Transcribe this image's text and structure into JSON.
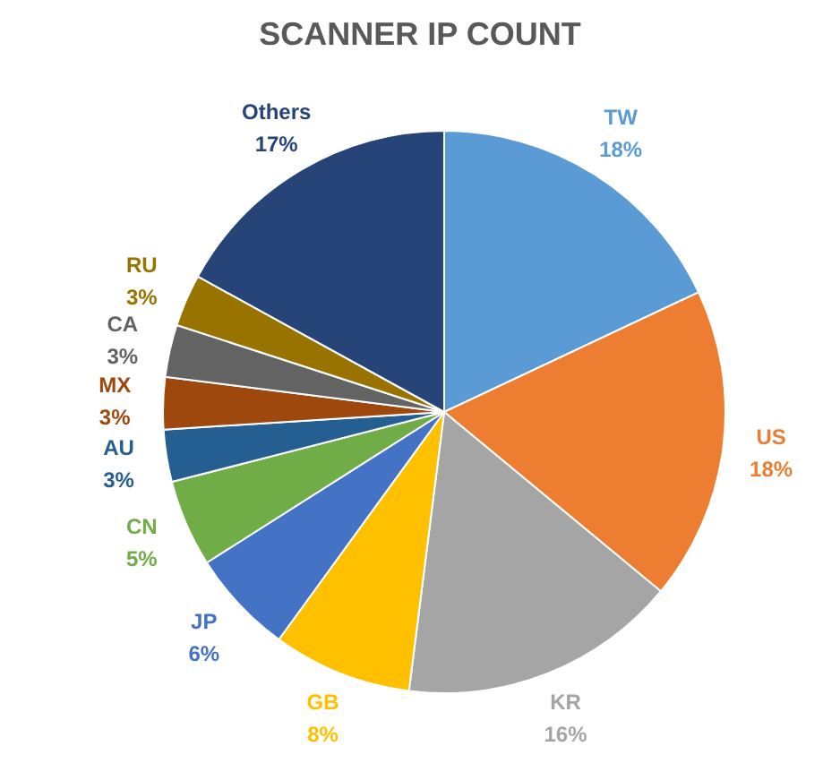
{
  "chart_data": {
    "type": "pie",
    "title": "SCANNER IP COUNT",
    "categories": [
      "TW",
      "US",
      "KR",
      "GB",
      "JP",
      "CN",
      "AU",
      "MX",
      "CA",
      "RU",
      "Others"
    ],
    "values": [
      18,
      18,
      16,
      8,
      6,
      5,
      3,
      3,
      3,
      3,
      17
    ],
    "value_labels": [
      "18%",
      "18%",
      "16%",
      "8%",
      "6%",
      "5%",
      "3%",
      "3%",
      "3%",
      "3%",
      "17%"
    ],
    "colors": [
      "#5b9bd5",
      "#ed7d31",
      "#a5a5a5",
      "#ffc000",
      "#4472c4",
      "#70ad47",
      "#255e91",
      "#9e480e",
      "#636363",
      "#997300",
      "#264478"
    ]
  }
}
